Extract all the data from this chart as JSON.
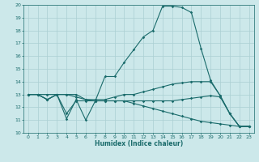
{
  "xlabel": "Humidex (Indice chaleur)",
  "bg_color": "#cce8ea",
  "grid_color": "#aacfd2",
  "line_color": "#1a6b6b",
  "xlim": [
    -0.5,
    23.5
  ],
  "ylim": [
    10,
    20
  ],
  "xticks": [
    0,
    1,
    2,
    3,
    4,
    5,
    6,
    7,
    8,
    9,
    10,
    11,
    12,
    13,
    14,
    15,
    16,
    17,
    18,
    19,
    20,
    21,
    22,
    23
  ],
  "yticks": [
    10,
    11,
    12,
    13,
    14,
    15,
    16,
    17,
    18,
    19,
    20
  ],
  "lines": [
    [
      13.0,
      13.0,
      12.6,
      13.0,
      11.1,
      12.6,
      11.0,
      12.5,
      14.4,
      14.4,
      15.5,
      16.5,
      17.5,
      18.0,
      19.9,
      19.9,
      19.8,
      19.4,
      16.6,
      14.1,
      12.9,
      11.5,
      10.5,
      10.5
    ],
    [
      13.0,
      13.0,
      13.0,
      13.0,
      13.0,
      13.0,
      12.6,
      12.6,
      12.6,
      12.8,
      13.0,
      13.0,
      13.2,
      13.4,
      13.6,
      13.8,
      13.9,
      14.0,
      14.0,
      14.0,
      12.9,
      11.5,
      10.5,
      10.5
    ],
    [
      13.0,
      13.0,
      12.6,
      13.0,
      13.0,
      12.8,
      12.6,
      12.5,
      12.5,
      12.5,
      12.5,
      12.5,
      12.5,
      12.5,
      12.5,
      12.5,
      12.6,
      12.7,
      12.8,
      12.9,
      12.8,
      11.5,
      10.5,
      10.5
    ],
    [
      13.0,
      13.0,
      12.6,
      13.0,
      11.5,
      12.5,
      12.5,
      12.5,
      12.5,
      12.5,
      12.5,
      12.3,
      12.1,
      11.9,
      11.7,
      11.5,
      11.3,
      11.1,
      10.9,
      10.8,
      10.7,
      10.6,
      10.5,
      10.5
    ]
  ]
}
